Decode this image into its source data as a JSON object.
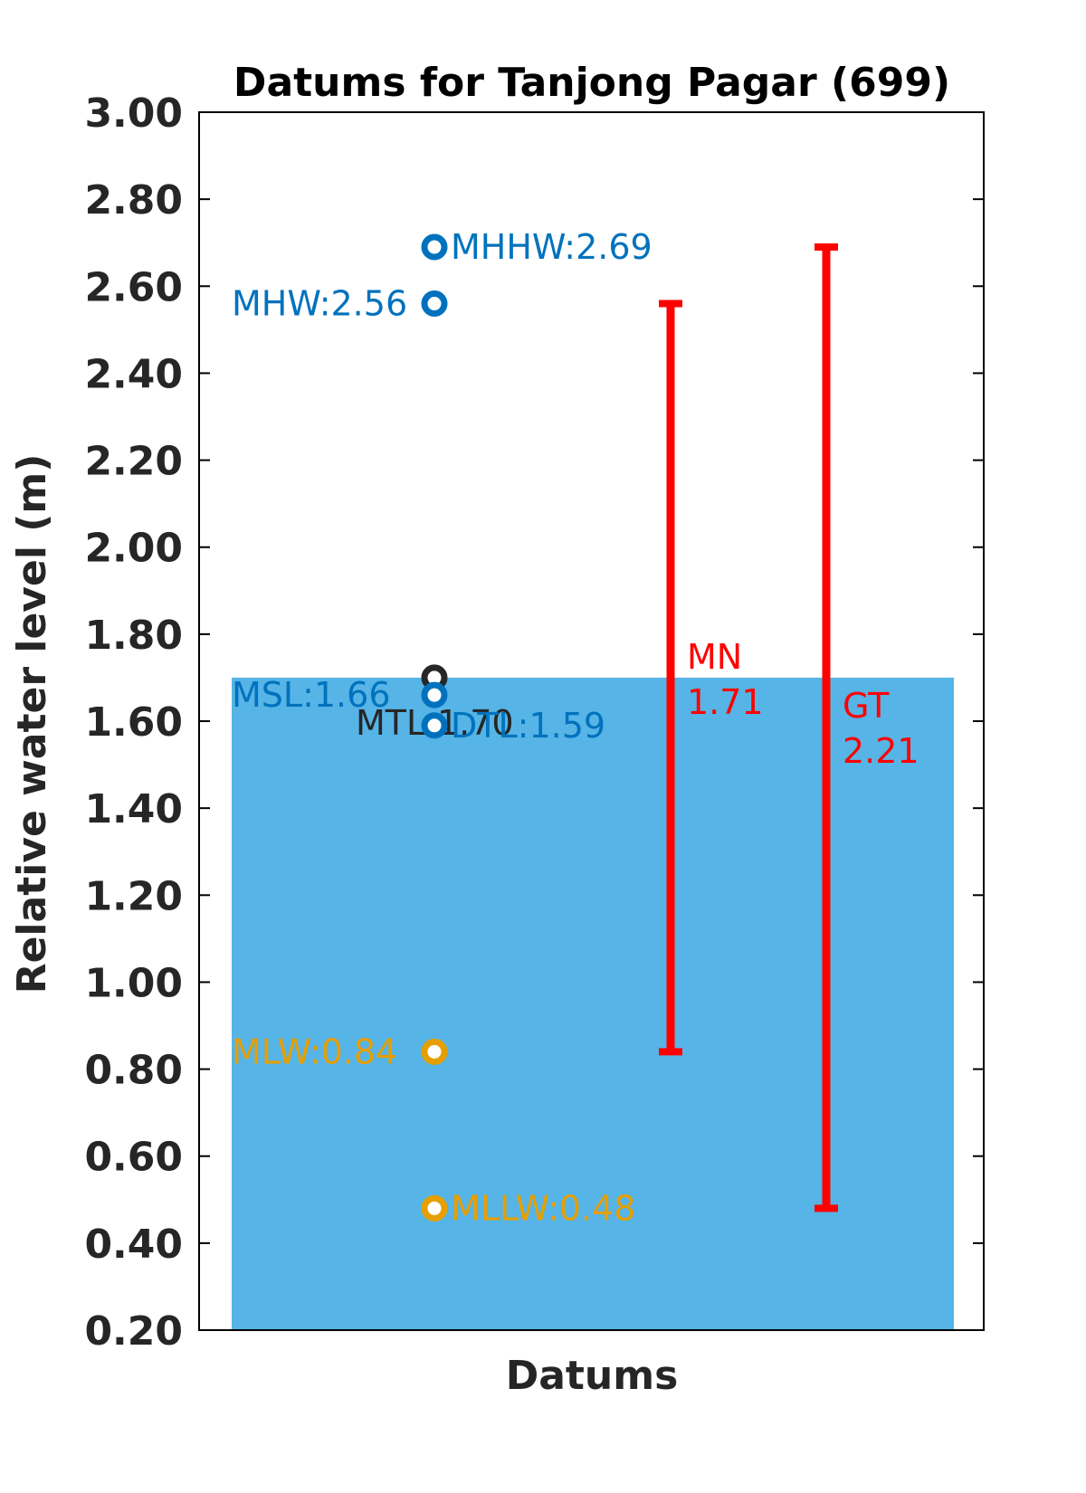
{
  "chart_data": {
    "type": "scatter",
    "title": "Datums for Tanjong Pagar (699)",
    "xlabel": "Datums",
    "ylabel": "Relative water level (m)",
    "ylim": [
      0.2,
      3.0
    ],
    "yticks": [
      "0.20",
      "0.40",
      "0.60",
      "0.80",
      "1.00",
      "1.20",
      "1.40",
      "1.60",
      "1.80",
      "2.00",
      "2.20",
      "2.40",
      "2.60",
      "2.80",
      "3.00"
    ],
    "grid": false,
    "background_bar": {
      "top": 1.7,
      "color": "#56b4e6"
    },
    "points": [
      {
        "name": "MHHW",
        "value": 2.69,
        "label": "MHHW:2.69",
        "color": "#0072bd",
        "side": "right"
      },
      {
        "name": "MHW",
        "value": 2.56,
        "label": "MHW:2.56",
        "color": "#0072bd",
        "side": "left"
      },
      {
        "name": "MTL",
        "value": 1.7,
        "label": "MTL:1.70",
        "color": "#262626",
        "side": "left-below"
      },
      {
        "name": "MSL",
        "value": 1.66,
        "label": "MSL:1.66",
        "color": "#0072bd",
        "side": "left"
      },
      {
        "name": "DTL",
        "value": 1.59,
        "label": "DTL:1.59",
        "color": "#0072bd",
        "side": "right"
      },
      {
        "name": "MLW",
        "value": 0.84,
        "label": "MLW:0.84",
        "color": "#e69f00",
        "side": "left"
      },
      {
        "name": "MLLW",
        "value": 0.48,
        "label": "MLLW:0.48",
        "color": "#e69f00",
        "side": "right"
      }
    ],
    "ranges": [
      {
        "name": "MN",
        "low": 0.84,
        "high": 2.56,
        "value_label": "1.71",
        "color": "#ff0000"
      },
      {
        "name": "GT",
        "low": 0.48,
        "high": 2.69,
        "value_label": "2.21",
        "color": "#ff0000"
      }
    ]
  }
}
